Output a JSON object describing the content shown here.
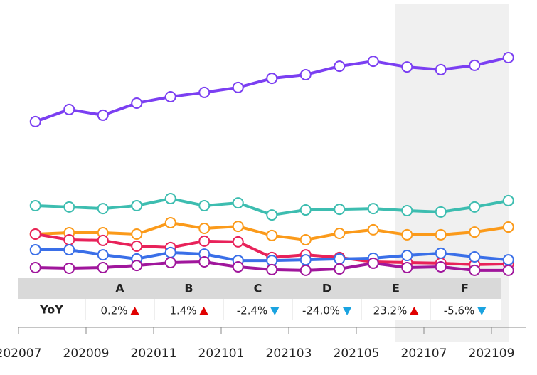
{
  "chart_data": {
    "type": "line",
    "categories": [
      "202007",
      null,
      "202009",
      null,
      "202011",
      null,
      "202101",
      null,
      "202103",
      null,
      "202105",
      null,
      "202107",
      null,
      "202109"
    ],
    "ylim": [
      0,
      100
    ],
    "series": [
      {
        "name": "A",
        "color": "#7b3ff2",
        "values": [
          71.6,
          76.9,
          74.4,
          79.7,
          82.5,
          84.4,
          86.6,
          90.6,
          92.2,
          95.9,
          98.1,
          95.6,
          94.4,
          96.3,
          99.7
        ]
      },
      {
        "name": "B",
        "color": "#3dbdb0",
        "values": [
          34.7,
          34.1,
          33.4,
          34.7,
          37.8,
          34.7,
          35.9,
          30.6,
          32.8,
          33.1,
          33.4,
          32.5,
          31.9,
          34.1,
          36.9
        ]
      },
      {
        "name": "C",
        "color": "#fb9a1a",
        "values": [
          22.2,
          22.8,
          22.8,
          22.2,
          27.2,
          24.7,
          25.6,
          21.6,
          19.7,
          22.5,
          24.1,
          21.9,
          21.9,
          23.1,
          25.3
        ]
      },
      {
        "name": "D",
        "color": "#e8225a",
        "values": [
          22.2,
          19.7,
          19.4,
          16.9,
          16.3,
          19.1,
          18.8,
          11.9,
          13.1,
          11.9,
          10.0,
          9.7,
          9.4,
          8.8,
          9.1
        ]
      },
      {
        "name": "E",
        "color": "#3a6fe8",
        "values": [
          15.3,
          15.3,
          13.1,
          11.3,
          14.1,
          13.4,
          10.6,
          10.6,
          10.9,
          11.3,
          11.6,
          12.8,
          13.8,
          12.2,
          10.9
        ]
      },
      {
        "name": "F",
        "color": "#a0169c",
        "values": [
          7.5,
          7.2,
          7.5,
          8.4,
          9.7,
          10.0,
          7.8,
          6.6,
          6.3,
          6.9,
          9.4,
          7.5,
          7.8,
          6.3,
          6.3
        ]
      }
    ]
  },
  "table": {
    "row_label": "YoY",
    "values": [
      0.2,
      1.4,
      -2.4,
      -24.0,
      23.2,
      -5.6
    ],
    "value_labels": [
      "0.2%",
      "1.4%",
      "-2.4%",
      "-24.0%",
      "23.2%",
      "-5.6%"
    ]
  }
}
